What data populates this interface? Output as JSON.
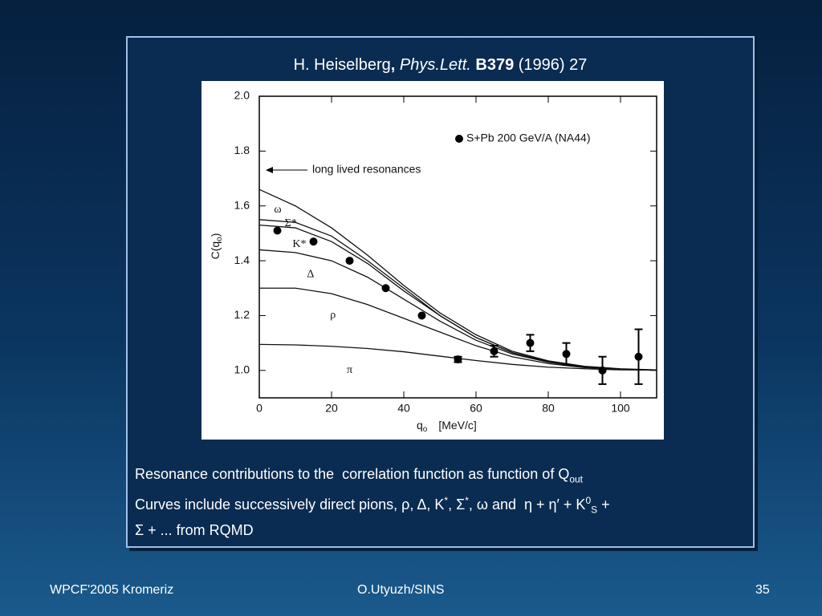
{
  "slide": {
    "title": [
      "H. Heiselberg",
      ",",
      "Phys.Lett.",
      "B379",
      "(1996) 27"
    ],
    "caption": {
      "line1": [
        "Resonance contributions to the  correlation function as function of Q",
        "out"
      ],
      "line2": [
        "Curves include successively direct pions, ρ, Δ, K",
        "*",
        ", Σ",
        "*",
        ", ω and  η + η′ + K",
        "0",
        "S",
        " +"
      ],
      "line3": "Σ + ... from RQMD"
    },
    "footer": {
      "left": "WPCF'2005 Kromeriz",
      "center": "O.Utyuzh/SINS",
      "right": "35"
    }
  },
  "chart_data": {
    "type": "line",
    "ylabel": [
      "C(q",
      "o",
      ")"
    ],
    "xlabel": [
      "q",
      "o",
      "[MeV/c]"
    ],
    "annotation": "long lived resonances",
    "xlim": [
      0,
      110
    ],
    "xticks": [
      0,
      20,
      40,
      60,
      80,
      100
    ],
    "ylim": [
      0.9,
      2.0
    ],
    "yticks": [
      {
        "value": 1.0,
        "label": "1.0"
      },
      1.2,
      1.4,
      1.6,
      1.8,
      {
        "value": 2.0,
        "label": "2.0"
      }
    ],
    "x": [
      0,
      10,
      20,
      30,
      40,
      50,
      60,
      70,
      80,
      90,
      100,
      110
    ],
    "series": [
      {
        "name": "ω",
        "color": "#111111",
        "values": [
          1.66,
          1.6,
          1.52,
          1.42,
          1.31,
          1.21,
          1.13,
          1.07,
          1.035,
          1.015,
          1.006,
          1.002
        ]
      },
      {
        "name": "Σ*",
        "color": "#111111",
        "values": [
          1.55,
          1.54,
          1.49,
          1.4,
          1.3,
          1.2,
          1.12,
          1.065,
          1.032,
          1.014,
          1.005,
          1.001
        ]
      },
      {
        "name": "K*",
        "color": "#111111",
        "values": [
          1.53,
          1.52,
          1.47,
          1.39,
          1.29,
          1.2,
          1.12,
          1.065,
          1.032,
          1.014,
          1.005,
          1.001
        ]
      },
      {
        "name": "Δ",
        "color": "#111111",
        "values": [
          1.44,
          1.43,
          1.4,
          1.34,
          1.26,
          1.18,
          1.11,
          1.06,
          1.03,
          1.012,
          1.005,
          1.001
        ]
      },
      {
        "name": "ρ",
        "color": "#111111",
        "values": [
          1.3,
          1.3,
          1.28,
          1.24,
          1.19,
          1.14,
          1.09,
          1.05,
          1.025,
          1.01,
          1.004,
          1.001
        ]
      },
      {
        "name": "π",
        "color": "#111111",
        "values": [
          1.095,
          1.093,
          1.088,
          1.08,
          1.068,
          1.052,
          1.036,
          1.022,
          1.012,
          1.006,
          1.002,
          1.001
        ]
      }
    ],
    "measurements": {
      "name": "S+Pb 200 GeV/A (NA44)",
      "color": "#000000",
      "x": [
        5,
        15,
        25,
        35,
        45,
        55,
        65,
        75,
        85,
        95,
        105
      ],
      "values": [
        1.51,
        1.47,
        1.4,
        1.3,
        1.2,
        1.04,
        1.07,
        1.1,
        1.06,
        1.0,
        1.05
      ],
      "errors": [
        0,
        0,
        0,
        0,
        0,
        0.01,
        0.02,
        0.03,
        0.04,
        0.05,
        0.1
      ]
    }
  }
}
